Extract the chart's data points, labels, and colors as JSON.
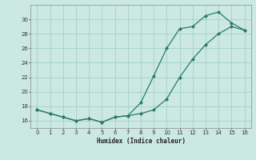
{
  "line1_x": [
    0,
    1,
    2,
    3,
    4,
    5,
    6,
    7,
    8,
    9,
    10,
    11,
    12,
    13,
    14,
    15,
    16
  ],
  "line1_y": [
    17.5,
    17.0,
    16.5,
    16.0,
    16.3,
    15.8,
    16.5,
    16.7,
    18.5,
    22.2,
    26.0,
    28.7,
    29.0,
    30.5,
    31.0,
    29.5,
    28.5
  ],
  "line2_x": [
    0,
    1,
    2,
    3,
    4,
    5,
    6,
    7,
    8,
    9,
    10,
    11,
    12,
    13,
    14,
    15,
    16
  ],
  "line2_y": [
    17.5,
    17.0,
    16.5,
    16.0,
    16.3,
    15.8,
    16.5,
    16.7,
    17.0,
    17.5,
    19.0,
    22.0,
    24.5,
    26.5,
    28.0,
    29.0,
    28.5
  ],
  "color": "#2a7a6a",
  "bg_color": "#cce8e2",
  "grid_color": "#99ccc4",
  "xlabel": "Humidex (Indice chaleur)",
  "xlim": [
    -0.5,
    16.5
  ],
  "ylim": [
    15.0,
    32.0
  ],
  "yticks": [
    16,
    18,
    20,
    22,
    24,
    26,
    28,
    30
  ],
  "xticks": [
    0,
    1,
    2,
    3,
    4,
    5,
    6,
    7,
    8,
    9,
    10,
    11,
    12,
    13,
    14,
    15,
    16
  ]
}
